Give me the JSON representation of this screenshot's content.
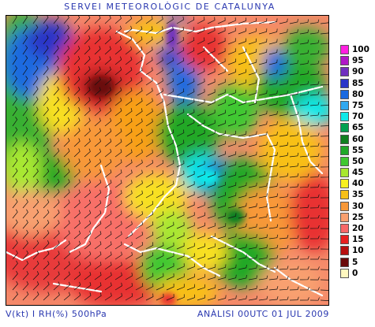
{
  "header": {
    "title": "SERVEI METEOROLÒGIC DE CATALUNYA"
  },
  "footer": {
    "variable_label": "V(kt) I RH(%) 500hPa",
    "analysis_label": "ANÀLISI 00UTC 01 JUL 2009"
  },
  "legend": {
    "items": [
      {
        "label": "100",
        "color": "#ff20e0"
      },
      {
        "label": "95",
        "color": "#b018c8"
      },
      {
        "label": "90",
        "color": "#7030c0"
      },
      {
        "label": "85",
        "color": "#2a35c8"
      },
      {
        "label": "80",
        "color": "#1a6ae0"
      },
      {
        "label": "75",
        "color": "#30a8f0"
      },
      {
        "label": "70",
        "color": "#10e8e8"
      },
      {
        "label": "65",
        "color": "#00a050"
      },
      {
        "label": "60",
        "color": "#108020"
      },
      {
        "label": "55",
        "color": "#20a828"
      },
      {
        "label": "50",
        "color": "#40c830"
      },
      {
        "label": "45",
        "color": "#a8e830"
      },
      {
        "label": "40",
        "color": "#f8f020"
      },
      {
        "label": "35",
        "color": "#f8c018"
      },
      {
        "label": "30",
        "color": "#f89838"
      },
      {
        "label": "25",
        "color": "#f8a070"
      },
      {
        "label": "20",
        "color": "#f86868"
      },
      {
        "label": "15",
        "color": "#e82020"
      },
      {
        "label": "10",
        "color": "#b81010"
      },
      {
        "label": "5",
        "color": "#6a0a0a"
      },
      {
        "label": "0",
        "color": "#fff8c0"
      }
    ]
  }
}
